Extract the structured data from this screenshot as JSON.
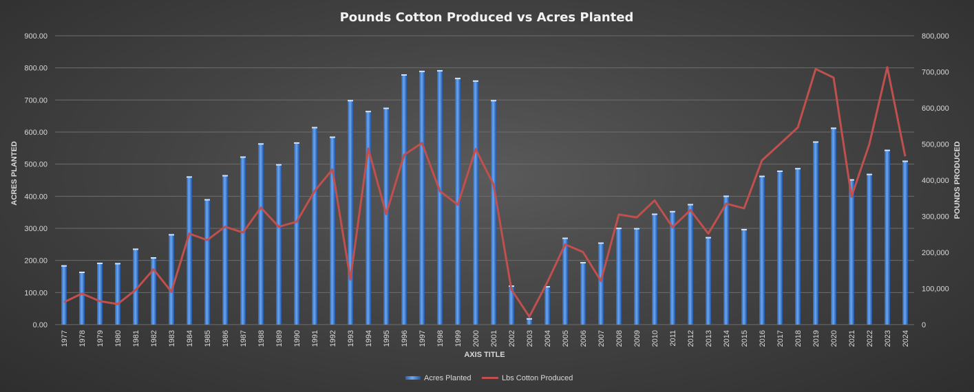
{
  "chart_data": {
    "type": "bar+line",
    "title": "Pounds Cotton Produced vs Acres Planted",
    "xlabel": "AXIS TITLE",
    "ylabel_left": "ACRES PLANTED",
    "ylabel_right": "POUNDS PRODUCED",
    "ylim_left": [
      0,
      900
    ],
    "ylim_right": [
      0,
      800000
    ],
    "yticks_left": [
      "0.00",
      "100.00",
      "200.00",
      "300.00",
      "400.00",
      "500.00",
      "600.00",
      "700.00",
      "800.00",
      "900.00"
    ],
    "yticks_right": [
      "0",
      "100,000",
      "200,000",
      "300,000",
      "400,000",
      "500,000",
      "600,000",
      "700,000",
      "800,000"
    ],
    "grid": true,
    "legend_position": "bottom",
    "categories": [
      "1977",
      "1978",
      "1979",
      "1980",
      "1981",
      "1982",
      "1983",
      "1984",
      "1985",
      "1986",
      "1987",
      "1988",
      "1989",
      "1990",
      "1991",
      "1992",
      "1993",
      "1994",
      "1995",
      "1996",
      "1997",
      "1998",
      "1999",
      "2000",
      "2001",
      "2002",
      "2003",
      "2004",
      "2005",
      "2006",
      "2007",
      "2008",
      "2009",
      "2010",
      "2011",
      "2012",
      "2013",
      "2014",
      "2015",
      "2016",
      "2017",
      "2018",
      "2019",
      "2020",
      "2021",
      "2022",
      "2023",
      "2024"
    ],
    "series": [
      {
        "name": "Acres Planted",
        "type": "bar",
        "axis": "left",
        "color": "#4a8fe0",
        "values": [
          185,
          165,
          193,
          192,
          237,
          210,
          282,
          462,
          391,
          466,
          524,
          565,
          500,
          568,
          616,
          586,
          700,
          666,
          676,
          780,
          791,
          793,
          769,
          761,
          700,
          122,
          20,
          120,
          271,
          195,
          256,
          302,
          301,
          346,
          354,
          376,
          273,
          402,
          298,
          464,
          480,
          488,
          571,
          614,
          453,
          470,
          545,
          511
        ]
      },
      {
        "name": "Lbs Cotton Produced",
        "type": "line",
        "axis": "right",
        "color": "#c0504d",
        "values": [
          62000,
          86000,
          65000,
          57000,
          96000,
          153000,
          91000,
          252000,
          234000,
          271000,
          255000,
          324000,
          271000,
          285000,
          370000,
          430000,
          125000,
          488000,
          306000,
          470000,
          503000,
          370000,
          332000,
          486000,
          388000,
          97000,
          22000,
          117000,
          222000,
          201000,
          121000,
          305000,
          297000,
          344000,
          270000,
          317000,
          252000,
          335000,
          322000,
          455000,
          500000,
          546000,
          708000,
          684000,
          354000,
          500000,
          713000,
          466000
        ]
      }
    ]
  }
}
